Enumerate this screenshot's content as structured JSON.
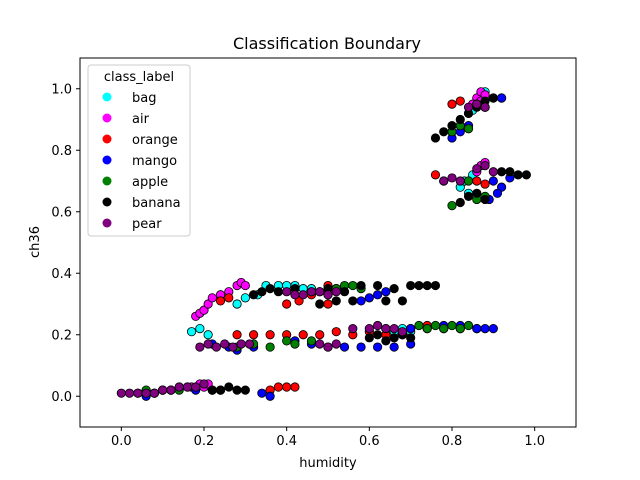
{
  "chart_data": {
    "type": "scatter",
    "title": "Classification Boundary",
    "xlabel": "humidity",
    "ylabel": "ch36",
    "xlim": [
      -0.1,
      1.1
    ],
    "ylim": [
      -0.1,
      1.1
    ],
    "xticks": [
      0.0,
      0.2,
      0.4,
      0.6,
      0.8,
      1.0
    ],
    "yticks": [
      0.0,
      0.2,
      0.4,
      0.6,
      0.8,
      1.0
    ],
    "xtick_labels": [
      "0.0",
      "0.2",
      "0.4",
      "0.6",
      "0.8",
      "1.0"
    ],
    "ytick_labels": [
      "0.0",
      "0.2",
      "0.4",
      "0.6",
      "0.8",
      "1.0"
    ],
    "grid": false,
    "legend": {
      "title": "class_label",
      "placement": "top-left"
    },
    "series": [
      {
        "name": "bag",
        "color": "#00ffff",
        "x": [
          0.17,
          0.19,
          0.21,
          0.28,
          0.3,
          0.33,
          0.35,
          0.38,
          0.4,
          0.42,
          0.44,
          0.46,
          0.8,
          0.82,
          0.84,
          0.85,
          0.86,
          0.87,
          0.88,
          0.82,
          0.83,
          0.84,
          0.85,
          0.64,
          0.66,
          0.68,
          0.7
        ],
        "y": [
          0.21,
          0.22,
          0.2,
          0.3,
          0.32,
          0.33,
          0.36,
          0.36,
          0.36,
          0.36,
          0.35,
          0.35,
          0.86,
          0.88,
          0.92,
          0.93,
          0.95,
          0.97,
          0.99,
          0.68,
          0.7,
          0.66,
          0.72,
          0.22,
          0.21,
          0.22,
          0.21
        ]
      },
      {
        "name": "air",
        "color": "#ff00ff",
        "x": [
          0.18,
          0.19,
          0.2,
          0.21,
          0.22,
          0.24,
          0.17,
          0.19,
          0.2,
          0.21,
          0.26,
          0.28,
          0.29,
          0.3,
          0.86,
          0.87,
          0.88,
          0.86,
          0.87,
          0.88,
          0.85,
          0.87,
          0.88
        ],
        "y": [
          0.26,
          0.27,
          0.28,
          0.3,
          0.32,
          0.33,
          0.03,
          0.04,
          0.03,
          0.04,
          0.34,
          0.36,
          0.37,
          0.36,
          0.97,
          0.99,
          0.98,
          0.73,
          0.75,
          0.76,
          0.95,
          0.96,
          0.94
        ]
      },
      {
        "name": "orange",
        "color": "#ff0000",
        "x": [
          0.24,
          0.26,
          0.28,
          0.32,
          0.36,
          0.4,
          0.44,
          0.48,
          0.52,
          0.56,
          0.6,
          0.64,
          0.68,
          0.4,
          0.43,
          0.46,
          0.48,
          0.5,
          0.52,
          0.36,
          0.38,
          0.4,
          0.42,
          0.5,
          0.8,
          0.82,
          0.9,
          0.92,
          0.86,
          0.88,
          0.76,
          0.78,
          0.7,
          0.74,
          0.78,
          0.82,
          0.86
        ],
        "y": [
          0.31,
          0.32,
          0.2,
          0.2,
          0.2,
          0.2,
          0.2,
          0.2,
          0.21,
          0.2,
          0.21,
          0.2,
          0.2,
          0.3,
          0.31,
          0.33,
          0.34,
          0.36,
          0.35,
          0.02,
          0.03,
          0.03,
          0.03,
          0.3,
          0.95,
          0.96,
          0.97,
          0.97,
          0.7,
          0.69,
          0.72,
          0.7,
          0.22,
          0.23,
          0.22,
          0.22,
          0.22
        ]
      },
      {
        "name": "mango",
        "color": "#0000ff",
        "x": [
          0.06,
          0.08,
          0.1,
          0.12,
          0.14,
          0.16,
          0.18,
          0.22,
          0.26,
          0.28,
          0.32,
          0.34,
          0.36,
          0.42,
          0.46,
          0.5,
          0.54,
          0.58,
          0.62,
          0.66,
          0.7,
          0.58,
          0.6,
          0.62,
          0.64,
          0.7,
          0.74,
          0.78,
          0.82,
          0.86,
          0.88,
          0.9,
          0.92,
          0.86,
          0.88,
          0.9,
          0.92,
          0.94,
          0.89,
          0.91,
          0.8,
          0.82,
          0.84
        ],
        "y": [
          0.0,
          0.01,
          0.02,
          0.02,
          0.03,
          0.03,
          0.02,
          0.17,
          0.16,
          0.15,
          0.16,
          0.01,
          0.0,
          0.18,
          0.17,
          0.16,
          0.16,
          0.16,
          0.16,
          0.16,
          0.17,
          0.31,
          0.32,
          0.33,
          0.34,
          0.22,
          0.22,
          0.23,
          0.23,
          0.22,
          0.22,
          0.22,
          0.97,
          0.95,
          0.94,
          0.7,
          0.68,
          0.71,
          0.64,
          0.66,
          0.84,
          0.86,
          0.88
        ]
      },
      {
        "name": "apple",
        "color": "#008000",
        "x": [
          0.04,
          0.06,
          0.08,
          0.1,
          0.12,
          0.14,
          0.22,
          0.24,
          0.28,
          0.32,
          0.36,
          0.4,
          0.42,
          0.46,
          0.5,
          0.52,
          0.54,
          0.56,
          0.58,
          0.72,
          0.74,
          0.76,
          0.78,
          0.8,
          0.82,
          0.84,
          0.8,
          0.82,
          0.84,
          0.86,
          0.88,
          0.8,
          0.84
        ],
        "y": [
          0.01,
          0.02,
          0.01,
          0.02,
          0.02,
          0.02,
          0.02,
          0.02,
          0.16,
          0.17,
          0.16,
          0.18,
          0.17,
          0.18,
          0.33,
          0.35,
          0.36,
          0.36,
          0.35,
          0.23,
          0.22,
          0.23,
          0.22,
          0.23,
          0.22,
          0.23,
          0.86,
          0.88,
          0.87,
          0.64,
          0.65,
          0.62,
          0.7
        ]
      },
      {
        "name": "banana",
        "color": "#000000",
        "x": [
          0.22,
          0.24,
          0.26,
          0.28,
          0.3,
          0.32,
          0.34,
          0.36,
          0.38,
          0.42,
          0.46,
          0.5,
          0.54,
          0.58,
          0.62,
          0.66,
          0.7,
          0.72,
          0.74,
          0.76,
          0.76,
          0.78,
          0.8,
          0.82,
          0.84,
          0.86,
          0.88,
          0.9,
          0.92,
          0.94,
          0.96,
          0.98,
          0.82,
          0.84,
          0.86,
          0.88,
          0.6,
          0.62,
          0.64,
          0.66,
          0.68,
          0.7,
          0.48,
          0.52,
          0.56,
          0.64,
          0.68
        ],
        "y": [
          0.02,
          0.02,
          0.03,
          0.02,
          0.02,
          0.33,
          0.34,
          0.35,
          0.34,
          0.35,
          0.34,
          0.35,
          0.34,
          0.36,
          0.36,
          0.35,
          0.36,
          0.36,
          0.36,
          0.36,
          0.84,
          0.86,
          0.88,
          0.9,
          0.92,
          0.94,
          0.96,
          0.97,
          0.73,
          0.73,
          0.72,
          0.72,
          0.63,
          0.65,
          0.66,
          0.64,
          0.19,
          0.2,
          0.18,
          0.19,
          0.2,
          0.19,
          0.3,
          0.31,
          0.31,
          0.31,
          0.31
        ]
      },
      {
        "name": "pear",
        "color": "#800080",
        "x": [
          0.0,
          0.02,
          0.04,
          0.06,
          0.08,
          0.1,
          0.12,
          0.14,
          0.16,
          0.18,
          0.2,
          0.19,
          0.21,
          0.23,
          0.25,
          0.27,
          0.29,
          0.31,
          0.48,
          0.5,
          0.52,
          0.56,
          0.6,
          0.62,
          0.64,
          0.66,
          0.68,
          0.4,
          0.42,
          0.44,
          0.46,
          0.48,
          0.5,
          0.52,
          0.84,
          0.86,
          0.88,
          0.78,
          0.8,
          0.82,
          0.86,
          0.88,
          0.9
        ],
        "y": [
          0.01,
          0.01,
          0.01,
          0.01,
          0.01,
          0.02,
          0.02,
          0.03,
          0.03,
          0.03,
          0.04,
          0.16,
          0.17,
          0.16,
          0.17,
          0.16,
          0.17,
          0.17,
          0.17,
          0.16,
          0.17,
          0.22,
          0.22,
          0.23,
          0.22,
          0.22,
          0.21,
          0.34,
          0.33,
          0.33,
          0.34,
          0.34,
          0.33,
          0.34,
          0.94,
          0.95,
          0.94,
          0.7,
          0.71,
          0.7,
          0.74,
          0.75,
          0.73
        ]
      }
    ]
  }
}
